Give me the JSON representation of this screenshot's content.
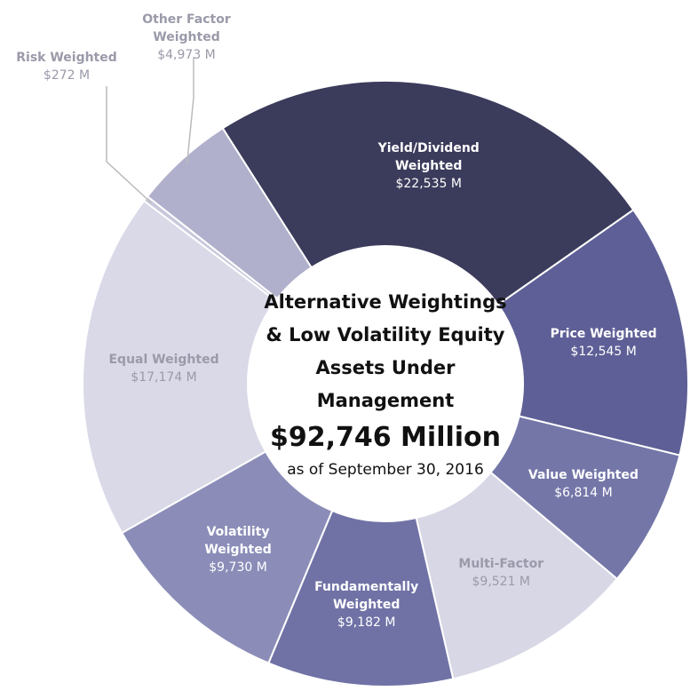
{
  "chart_data": {
    "type": "donut",
    "title": "Alternative Weightings & Low Volatility Equity Assets Under Management",
    "total_label": "$92,746 Million",
    "subtitle": "as of September 30, 2016",
    "categories": [
      "Yield/Dividend Weighted",
      "Price Weighted",
      "Value Weighted",
      "Multi-Factor",
      "Fundamentally Weighted",
      "Volatility Weighted",
      "Equal Weighted",
      "Risk Weighted",
      "Other Factor Weighted"
    ],
    "values": [
      22535,
      12545,
      6814,
      9521,
      9182,
      9730,
      17174,
      272,
      4973
    ],
    "value_labels": [
      "$22,535 M",
      "$12,545 M",
      "$6,814 M",
      "$9,521 M",
      "$9,182 M",
      "$9,730 M",
      "$17,174 M",
      "$272 M",
      "$4,973 M"
    ],
    "colors": [
      "#3b3b5c",
      "#5e5f96",
      "#7476a8",
      "#d7d7e6",
      "#7072a6",
      "#8b8db8",
      "#d9d9e8",
      "#c8c8dc",
      "#b0b0cc"
    ]
  }
}
